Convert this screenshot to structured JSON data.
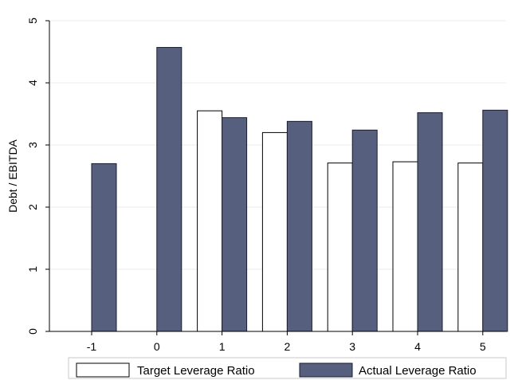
{
  "chart_data": {
    "type": "bar",
    "categories": [
      "-1",
      "0",
      "1",
      "2",
      "3",
      "4",
      "5"
    ],
    "series": [
      {
        "name": "Target Leverage Ratio",
        "values": [
          null,
          null,
          3.55,
          3.2,
          2.71,
          2.73,
          2.71
        ],
        "color": "#ffffff",
        "stroke": "#000000"
      },
      {
        "name": "Actual Leverage Ratio",
        "values": [
          2.7,
          4.57,
          3.44,
          3.38,
          3.24,
          3.52,
          3.56
        ],
        "color": "#56607e",
        "stroke": "#1a1d2e"
      }
    ],
    "xlabel": "",
    "ylabel": "Debt / EBITDA",
    "ylim": [
      0,
      5
    ],
    "yticks": [
      "0",
      "1",
      "2",
      "3",
      "4",
      "5"
    ],
    "grid": true,
    "legend_position": "bottom"
  }
}
